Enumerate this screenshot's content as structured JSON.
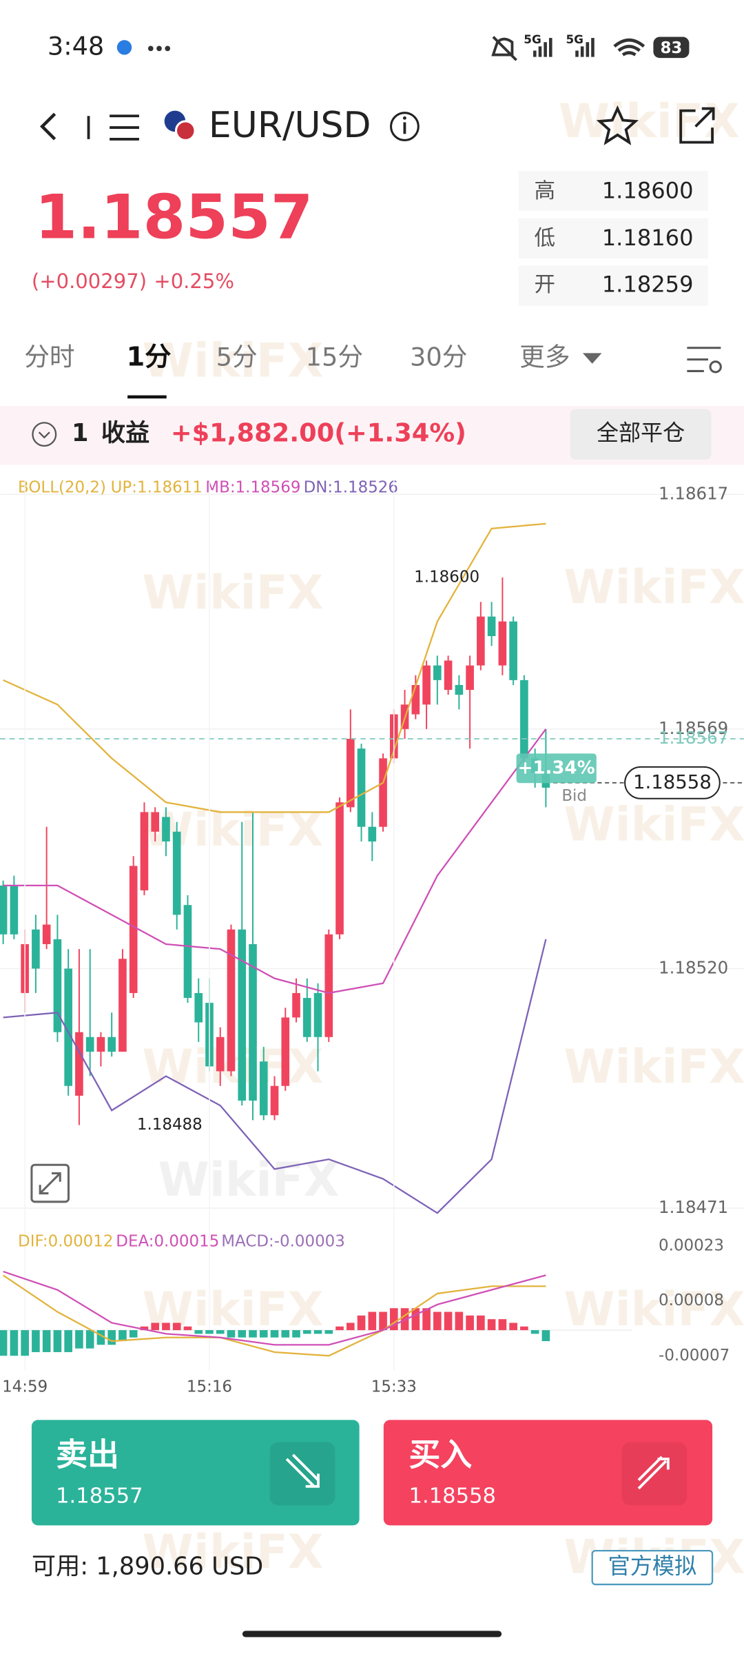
{
  "status_bar": {
    "time": "3:48",
    "network": "5G",
    "battery": "83"
  },
  "header": {
    "symbol": "EUR/USD"
  },
  "quote": {
    "price": "1.18557",
    "change": "(+0.00297)",
    "change_pct": "+0.25%",
    "high_label": "高",
    "high": "1.18600",
    "low_label": "低",
    "low": "1.18160",
    "open_label": "开",
    "open": "1.18259"
  },
  "tabs": [
    "分时",
    "1分",
    "5分",
    "15分",
    "30分",
    "更多"
  ],
  "position": {
    "count": "1",
    "label": "收益",
    "profit": "+$1,882.00(+1.34%)",
    "close_all": "全部平仓"
  },
  "watermark": "WikiFX",
  "chart_data": [
    {
      "type": "candlestick",
      "title": "BOLL(20,2)",
      "categories": [
        null,
        null,
        "14:59",
        null,
        null,
        null,
        null,
        null,
        null,
        null,
        null,
        null,
        null,
        null,
        null,
        null,
        null,
        null,
        null,
        "15:16",
        null,
        null,
        null,
        null,
        null,
        null,
        null,
        null,
        null,
        null,
        null,
        null,
        null,
        null,
        null,
        null,
        "15:33",
        null,
        null,
        null,
        null,
        null,
        null,
        null,
        null,
        null,
        null,
        null,
        null,
        null,
        null
      ],
      "open": [
        1.18537,
        1.18537,
        1.18515,
        1.18528,
        1.18525,
        1.18526,
        1.1852,
        1.18494,
        1.18506,
        1.18503,
        1.18506,
        1.18503,
        1.18515,
        1.18536,
        1.18548,
        1.18551,
        1.18548,
        1.18533,
        1.18515,
        1.18513,
        1.18499,
        1.18499,
        1.18528,
        1.18525,
        1.18501,
        1.1849,
        1.18496,
        1.1851,
        1.18514,
        1.18515,
        1.18506,
        1.18527,
        1.18553,
        1.18565,
        1.18549,
        1.18549,
        1.18563,
        1.18569,
        1.18572,
        1.18574,
        1.18582,
        1.18577,
        1.18578,
        1.18577,
        1.18582,
        1.18592,
        1.18582,
        1.18591,
        1.18579,
        1.18563,
        1.1856
      ],
      "high": [
        1.18538,
        1.18539,
        1.18528,
        1.18531,
        1.18549,
        1.18531,
        1.18524,
        1.18524,
        1.18524,
        1.18507,
        1.18511,
        1.18524,
        1.18543,
        1.18554,
        1.18553,
        1.18553,
        1.1855,
        1.18535,
        1.18518,
        1.18518,
        1.18508,
        1.18529,
        1.1855,
        1.18552,
        1.18504,
        1.18498,
        1.18512,
        1.18518,
        1.18518,
        1.18517,
        1.18528,
        1.18555,
        1.18573,
        1.18566,
        1.18552,
        1.18564,
        1.18573,
        1.18577,
        1.1858,
        1.18583,
        1.18584,
        1.18584,
        1.1858,
        1.18584,
        1.18595,
        1.18595,
        1.186,
        1.18592,
        1.1858,
        1.18565,
        1.18569
      ],
      "low": [
        1.18525,
        1.18526,
        1.18511,
        1.18515,
        1.18524,
        1.18505,
        1.18494,
        1.18488,
        1.18498,
        1.185,
        1.18502,
        1.18503,
        1.18514,
        1.18535,
        1.18546,
        1.18543,
        1.18528,
        1.18513,
        1.18505,
        1.18499,
        1.18496,
        1.18498,
        1.18492,
        1.18489,
        1.18489,
        1.18489,
        1.18495,
        1.18509,
        1.18505,
        1.18499,
        1.18505,
        1.18526,
        1.18552,
        1.18546,
        1.18542,
        1.18548,
        1.18562,
        1.18567,
        1.18571,
        1.18569,
        1.18574,
        1.18576,
        1.18573,
        1.18565,
        1.18581,
        1.18586,
        1.1858,
        1.18578,
        1.18561,
        1.18557,
        1.18553
      ],
      "close": [
        1.18527,
        1.18527,
        1.18525,
        1.1852,
        1.18529,
        1.18507,
        1.18496,
        1.18507,
        1.18503,
        1.18506,
        1.18503,
        1.18522,
        1.18541,
        1.18552,
        1.18552,
        1.18546,
        1.18531,
        1.18514,
        1.18509,
        1.185,
        1.18506,
        1.18528,
        1.18493,
        1.18493,
        1.1849,
        1.18496,
        1.1851,
        1.18515,
        1.18506,
        1.18506,
        1.18527,
        1.18554,
        1.18567,
        1.18549,
        1.18546,
        1.18563,
        1.18572,
        1.18574,
        1.18578,
        1.18582,
        1.18579,
        1.18583,
        1.18576,
        1.18582,
        1.18592,
        1.18588,
        1.18591,
        1.18579,
        1.18563,
        1.1856,
        1.18557
      ],
      "up_color": "#f0445e",
      "down_color": "#2bb39a",
      "series": [
        {
          "name": "UP:1.18611",
          "color": "#e2b33c",
          "x": [
            0,
            5,
            10,
            15,
            20,
            25,
            30,
            35,
            40,
            45,
            50
          ],
          "values": [
            1.18579,
            1.18574,
            1.18563,
            1.18554,
            1.18552,
            1.18552,
            1.18552,
            1.18558,
            1.18591,
            1.1861,
            1.18611
          ]
        },
        {
          "name": "MB:1.18569",
          "color": "#cf4fb5",
          "x": [
            0,
            5,
            10,
            15,
            20,
            25,
            30,
            35,
            40,
            45,
            50
          ],
          "values": [
            1.18537,
            1.18537,
            1.18531,
            1.18525,
            1.18524,
            1.18518,
            1.18515,
            1.18517,
            1.18539,
            1.18554,
            1.18569
          ]
        },
        {
          "name": "DN:1.18526",
          "color": "#7d62b6",
          "x": [
            0,
            5,
            10,
            15,
            20,
            25,
            30,
            35,
            40,
            45,
            50
          ],
          "values": [
            1.1851,
            1.18511,
            1.18491,
            1.18498,
            1.18492,
            1.18479,
            1.18481,
            1.18477,
            1.1847,
            1.18481,
            1.18526
          ]
        }
      ],
      "ylim": [
        1.18468,
        1.1862
      ],
      "yticks": [
        1.18617,
        1.18569,
        {
          "value": 1.1852,
          "label": "1.18520"
        },
        1.18471
      ],
      "grid": true,
      "price_lines": [
        1.18567,
        1.18558
      ],
      "bid_label": "Bid",
      "position_badge": "+1.34%",
      "high_marker": {
        "value": 1.186,
        "label": "1.18600"
      },
      "low_marker": 1.18488
    },
    {
      "type": "macd",
      "histogram": {
        "name": "MACD:-0.00003",
        "color": "#9b6fb8",
        "up_color": "#f0445e",
        "down_color": "#2bb39a",
        "values": [
          -7e-05,
          -7e-05,
          -7e-05,
          -6e-05,
          -6e-05,
          -6e-05,
          -6e-05,
          -5e-05,
          -5e-05,
          -4e-05,
          -4e-05,
          -3e-05,
          -2e-05,
          1e-05,
          2e-05,
          2e-05,
          2e-05,
          1e-05,
          -1e-05,
          -1e-05,
          -1e-05,
          -2e-05,
          -2e-05,
          -2e-05,
          -2e-05,
          -2e-05,
          -2e-05,
          -2e-05,
          -1e-05,
          -1e-05,
          -1e-05,
          1e-05,
          2e-05,
          4e-05,
          5e-05,
          5e-05,
          6e-05,
          6e-05,
          6e-05,
          6e-05,
          5e-05,
          5e-05,
          5e-05,
          4e-05,
          4e-05,
          3e-05,
          3e-05,
          2e-05,
          1e-05,
          -1e-05,
          -3e-05
        ]
      },
      "series": [
        {
          "name": "DIF:0.00012",
          "color": "#e2b33c",
          "x": [
            0,
            5,
            10,
            15,
            20,
            25,
            30,
            35,
            40,
            45,
            50
          ],
          "values": [
            0.00015,
            5e-05,
            -3e-05,
            -2e-05,
            -2e-05,
            -6e-05,
            -7e-05,
            0,
            0.0001,
            0.00012,
            0.00012
          ]
        },
        {
          "name": "DEA:0.00015",
          "color": "#cf4fb5",
          "x": [
            0,
            5,
            10,
            15,
            20,
            25,
            30,
            35,
            40,
            45,
            50
          ],
          "values": [
            0.00016,
            0.00011,
            2e-05,
            -1e-05,
            -2e-05,
            -4e-05,
            -4e-05,
            0,
            7e-05,
            0.00011,
            0.00015
          ]
        }
      ],
      "ylim": [
        -0.00011,
        0.00026
      ],
      "yticks": [
        0.00023,
        8e-05,
        -7e-05
      ]
    }
  ],
  "actions": {
    "sell_label": "卖出",
    "sell_price": "1.18557",
    "buy_label": "买入",
    "buy_price": "1.18558"
  },
  "footer": {
    "available": "可用: 1,890.66 USD",
    "account_badge": "官方模拟"
  }
}
